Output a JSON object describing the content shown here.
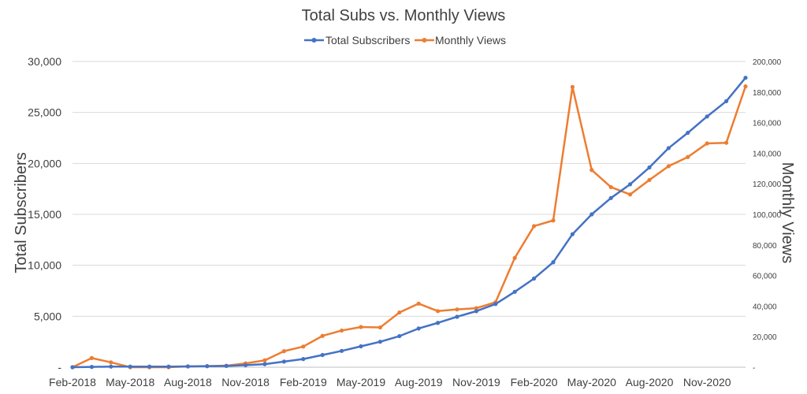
{
  "chart_data": {
    "type": "line",
    "title": "Total Subs vs. Monthly Views",
    "y_left_label": "Total Subscribers",
    "y_right_label": "Monthly Views",
    "y_left_range": [
      0,
      30000
    ],
    "y_right_range": [
      0,
      200000
    ],
    "y_left_ticks": [
      "-",
      "5,000",
      "10,000",
      "15,000",
      "20,000",
      "25,000",
      "30,000"
    ],
    "y_right_ticks": [
      "-",
      "20,000",
      "40,000",
      "60,000",
      "80,000",
      "100,000",
      "120,000",
      "140,000",
      "160,000",
      "180,000",
      "200,000"
    ],
    "x_tick_labels": [
      "Feb-2018",
      "May-2018",
      "Aug-2018",
      "Nov-2018",
      "Feb-2019",
      "May-2019",
      "Aug-2019",
      "Nov-2019",
      "Feb-2020",
      "May-2020",
      "Aug-2020",
      "Nov-2020"
    ],
    "x": [
      "Feb-2018",
      "Mar-2018",
      "Apr-2018",
      "May-2018",
      "Jun-2018",
      "Jul-2018",
      "Aug-2018",
      "Sep-2018",
      "Oct-2018",
      "Nov-2018",
      "Dec-2018",
      "Jan-2019",
      "Feb-2019",
      "Mar-2019",
      "Apr-2019",
      "May-2019",
      "Jun-2019",
      "Jul-2019",
      "Aug-2019",
      "Sep-2019",
      "Oct-2019",
      "Nov-2019",
      "Dec-2019",
      "Jan-2020",
      "Feb-2020",
      "Mar-2020",
      "Apr-2020",
      "May-2020",
      "Jun-2020",
      "Jul-2020",
      "Aug-2020",
      "Sep-2020",
      "Oct-2020",
      "Nov-2020",
      "Dec-2020",
      "Jan-2021"
    ],
    "series": [
      {
        "name": "Total Subscribers",
        "axis": "left",
        "color": "#4472C4",
        "values": [
          0,
          30,
          60,
          60,
          60,
          60,
          80,
          100,
          120,
          200,
          300,
          550,
          800,
          1200,
          1600,
          2050,
          2500,
          3050,
          3800,
          4350,
          4950,
          5500,
          6200,
          7400,
          8700,
          10300,
          13050,
          15000,
          16600,
          17950,
          19600,
          21500,
          23000,
          24600,
          26100,
          28400
        ]
      },
      {
        "name": "Monthly Views",
        "axis": "right",
        "color": "#ED7D31",
        "values": [
          0,
          6000,
          3200,
          0,
          0,
          0,
          500,
          700,
          1000,
          2500,
          4500,
          10500,
          13500,
          20500,
          24000,
          26300,
          26000,
          35800,
          41600,
          36700,
          37800,
          38600,
          42500,
          71500,
          92300,
          96000,
          183300,
          129000,
          117800,
          113000,
          122500,
          131500,
          137500,
          146400,
          146800,
          183700
        ]
      }
    ]
  }
}
